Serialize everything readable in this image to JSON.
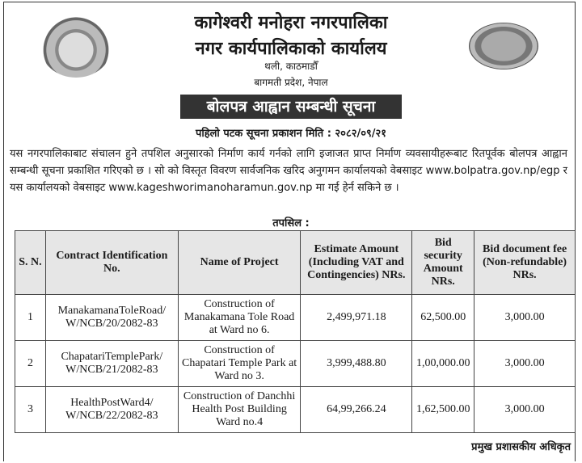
{
  "header": {
    "title_line1": "कागेश्वरी मनोहरा नगरपालिका",
    "title_line2": "नगर कार्यपालिकाको कार्यालय",
    "address_line1": "थली, काठमाडौँ",
    "address_line2": "बागमती प्रदेश, नेपाल"
  },
  "notice_title": "बोलपत्र आह्वान सम्बन्धी सूचना",
  "publish_date": "पहिलो पटक सूचना प्रकाशन मिति : २०८२/०९/२१",
  "body_text": "यस नगरपालिकाबाट संचालन हुने तपशिल अनुसारको निर्माण कार्य गर्नको लागि इजाजत प्राप्त निर्माण व्यवसायीहरूबाट रितपूर्वक बोलपत्र आह्वान सम्बन्धी सूचना प्रकाशित गरिएको छ । सो को विस्तृत विवरण सार्वजनिक खरिद अनुगमन कार्यालयको वेबसाइट www.bolpatra.gov.np/egp र यस कार्यालयको वेबसाइट www.kageshworimanoharamun.gov.np मा गई हेर्न सकिने छ ।",
  "table_caption": "तपसिल :",
  "table": {
    "headers": [
      "S. N.",
      "Contract Identification No.",
      "Name of Project",
      "Estimate Amount (Including VAT and Contingencies) NRs.",
      "Bid security Amount NRs.",
      "Bid document fee (Non-refundable) NRs."
    ],
    "rows": [
      [
        "1",
        "ManakamanaToleRoad/ W/NCB/20/2082-83",
        "Construction of Manakamana Tole Road at Ward no 6.",
        "2,499,971.18",
        "62,500.00",
        "3,000.00"
      ],
      [
        "2",
        "ChapatariTemplePark/ W/NCB/21/2082-83",
        "Construction of Chapatari Temple Park at Ward no 3.",
        "3,999,488.80",
        "1,00,000.00",
        "3,000.00"
      ],
      [
        "3",
        "HealthPostWard4/ W/NCB/22/2082-83",
        "Construction of Danchhi Health Post Building Ward no.4",
        "64,99,266.24",
        "1,62,500.00",
        "3,000.00"
      ]
    ]
  },
  "signature": "प्रमुख प्रशासकीय अधिकृत"
}
